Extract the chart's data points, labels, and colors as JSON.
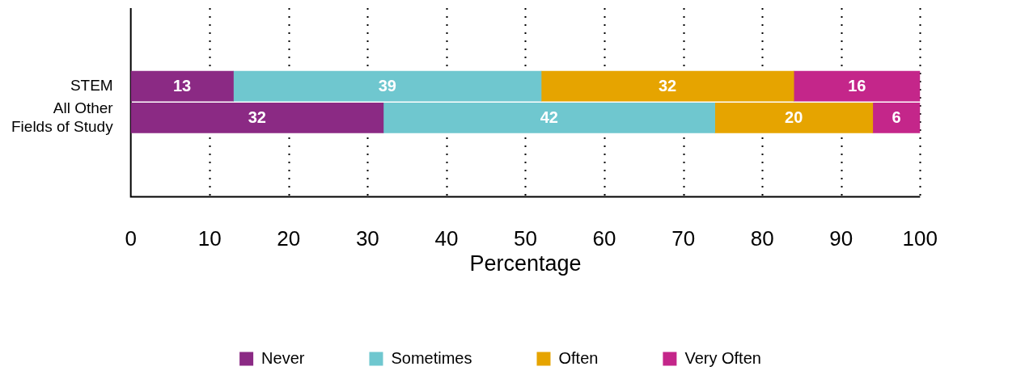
{
  "chart_data": {
    "type": "bar",
    "orientation": "horizontal",
    "stacked": true,
    "xlabel": "Percentage",
    "categories": [
      "STEM",
      "All Other\nFields of Study"
    ],
    "series": [
      {
        "name": "Never",
        "color": "#8b2a84",
        "values": [
          13,
          32
        ]
      },
      {
        "name": "Sometimes",
        "color": "#6fc7cf",
        "values": [
          39,
          42
        ]
      },
      {
        "name": "Often",
        "color": "#e6a400",
        "values": [
          32,
          20
        ]
      },
      {
        "name": "Very Often",
        "color": "#c4268a",
        "values": [
          16,
          6
        ]
      }
    ],
    "xlim": [
      0,
      100
    ],
    "xticks": [
      0,
      10,
      20,
      30,
      40,
      50,
      60,
      70,
      80,
      90,
      100
    ],
    "grid": "x",
    "legend": "bottom",
    "data_labels": true
  }
}
